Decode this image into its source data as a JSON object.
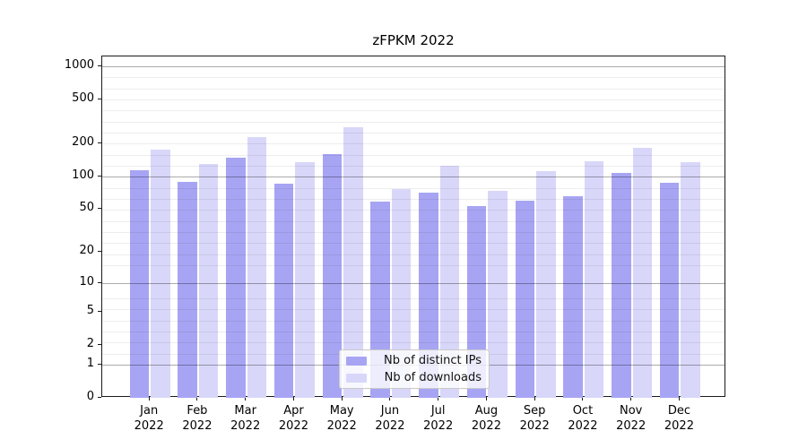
{
  "chart_data": {
    "type": "bar",
    "title": "zFPKM 2022",
    "categories": [
      "Jan 2022",
      "Feb 2022",
      "Mar 2022",
      "Apr 2022",
      "May 2022",
      "Jun 2022",
      "Jul 2022",
      "Aug 2022",
      "Sep 2022",
      "Oct 2022",
      "Nov 2022",
      "Dec 2022"
    ],
    "series": [
      {
        "name": "Nb of distinct IPs",
        "color": "#a7a5f3",
        "values": [
          114,
          89,
          149,
          86,
          161,
          59,
          71,
          53,
          60,
          66,
          107,
          87
        ]
      },
      {
        "name": "Nb of downloads",
        "color": "#d8d7f9",
        "values": [
          174,
          130,
          228,
          134,
          282,
          76,
          125,
          74,
          112,
          138,
          181,
          135
        ]
      }
    ],
    "yscale": "log10(1+y)",
    "ylim": [
      0,
      1230
    ],
    "ytick_values": [
      1000,
      500,
      200,
      100,
      50,
      20,
      10,
      5,
      2,
      1,
      0
    ],
    "major_grid_values": [
      1,
      10,
      100,
      1000
    ],
    "grid": true,
    "legend_position": "inside-bottom-center",
    "xlabel": "",
    "ylabel": ""
  }
}
